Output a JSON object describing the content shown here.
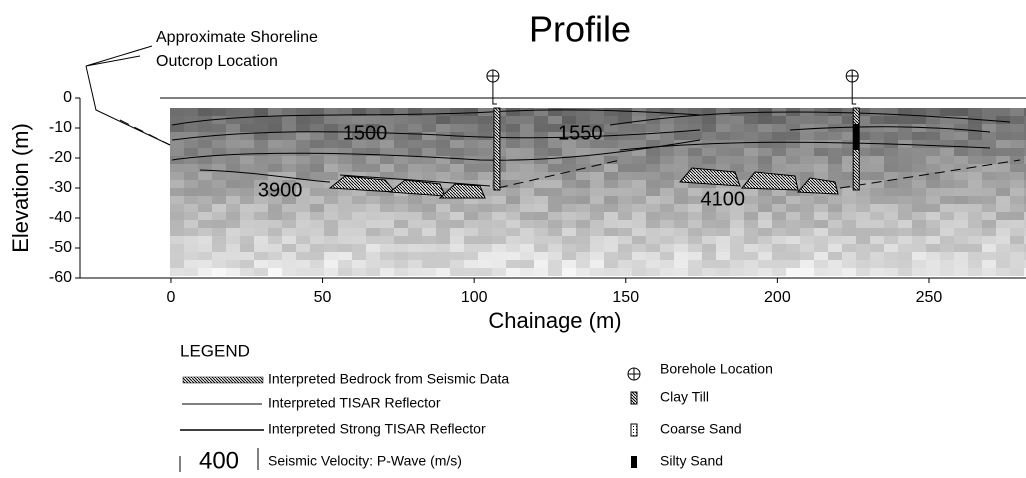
{
  "chart_data": {
    "type": "profile",
    "title": "Profile",
    "xlabel": "Chainage (m)",
    "ylabel": "Elevation (m)",
    "xlim": [
      -30,
      282
    ],
    "ylim": [
      -60,
      0
    ],
    "xticks": [
      0,
      50,
      100,
      150,
      200,
      250
    ],
    "yticks": [
      -60,
      -50,
      -40,
      -30,
      -20,
      -10,
      0
    ],
    "boreholes": [
      107.5,
      226
    ],
    "velocity_labels": {
      "values": [
        1500,
        1550,
        3900,
        4100
      ],
      "x": [
        64,
        135,
        36,
        182
      ],
      "y": [
        -12,
        -12,
        -31,
        -34
      ]
    },
    "annotation": [
      "Approximate Shoreline",
      "Outcrop Location"
    ],
    "legend": {
      "title": "LEGEND",
      "left": [
        "Interpreted Bedrock from Seismic Data",
        "Interpreted TISAR Reflector",
        "Interpreted Strong TISAR Reflector",
        "Seismic Velocity: P-Wave (m/s)"
      ],
      "sample": 400,
      "right": [
        "Borehole Location",
        "Clay Till",
        "Coarse Sand",
        "Silty Sand"
      ]
    }
  }
}
